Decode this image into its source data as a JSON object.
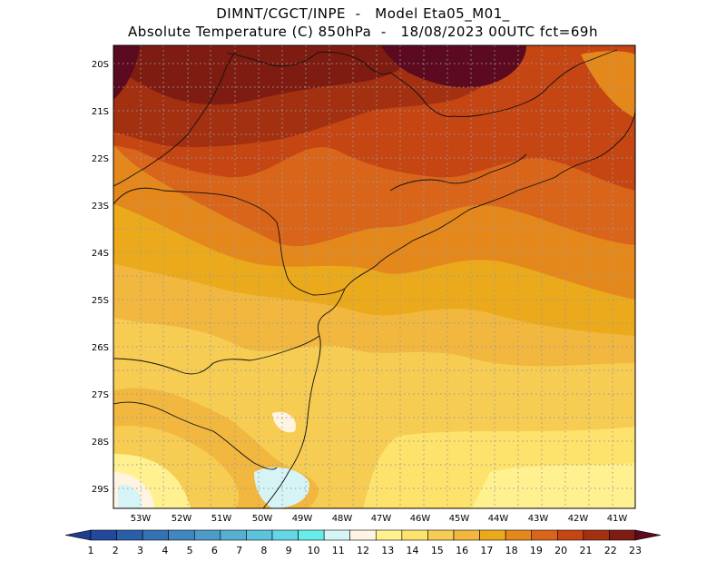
{
  "title": {
    "line1": "DIMNT/CGCT/INPE  -   Model Eta05_M01_",
    "line2": "Absolute Temperature (C) 850hPa  -   18/08/2023 00UTC fct=69h"
  },
  "map": {
    "lat_labels": [
      "20S",
      "21S",
      "22S",
      "23S",
      "24S",
      "25S",
      "26S",
      "27S",
      "28S",
      "29S"
    ],
    "lon_labels": [
      "53W",
      "52W",
      "51W",
      "50W",
      "49W",
      "48W",
      "47W",
      "46W",
      "45W",
      "44W",
      "43W",
      "42W",
      "41W"
    ]
  },
  "colorbar": {
    "labels": [
      "1",
      "2",
      "3",
      "4",
      "5",
      "6",
      "7",
      "8",
      "9",
      "10",
      "11",
      "12",
      "13",
      "14",
      "15",
      "16",
      "17",
      "18",
      "19",
      "20",
      "21",
      "22",
      "23"
    ],
    "colors": [
      "#1f3c8f",
      "#24489c",
      "#2b5ea8",
      "#3473b3",
      "#3f87be",
      "#4c9bc8",
      "#57afd2",
      "#5cc3db",
      "#63d7e6",
      "#66ece9",
      "#d6f4f5",
      "#fff3e1",
      "#fff190",
      "#fde26c",
      "#f7cc53",
      "#f1b73f",
      "#ebaa1c",
      "#e5881b",
      "#d9651a",
      "#c54513",
      "#a33011",
      "#7e1c11",
      "#5b0a1f"
    ]
  }
}
